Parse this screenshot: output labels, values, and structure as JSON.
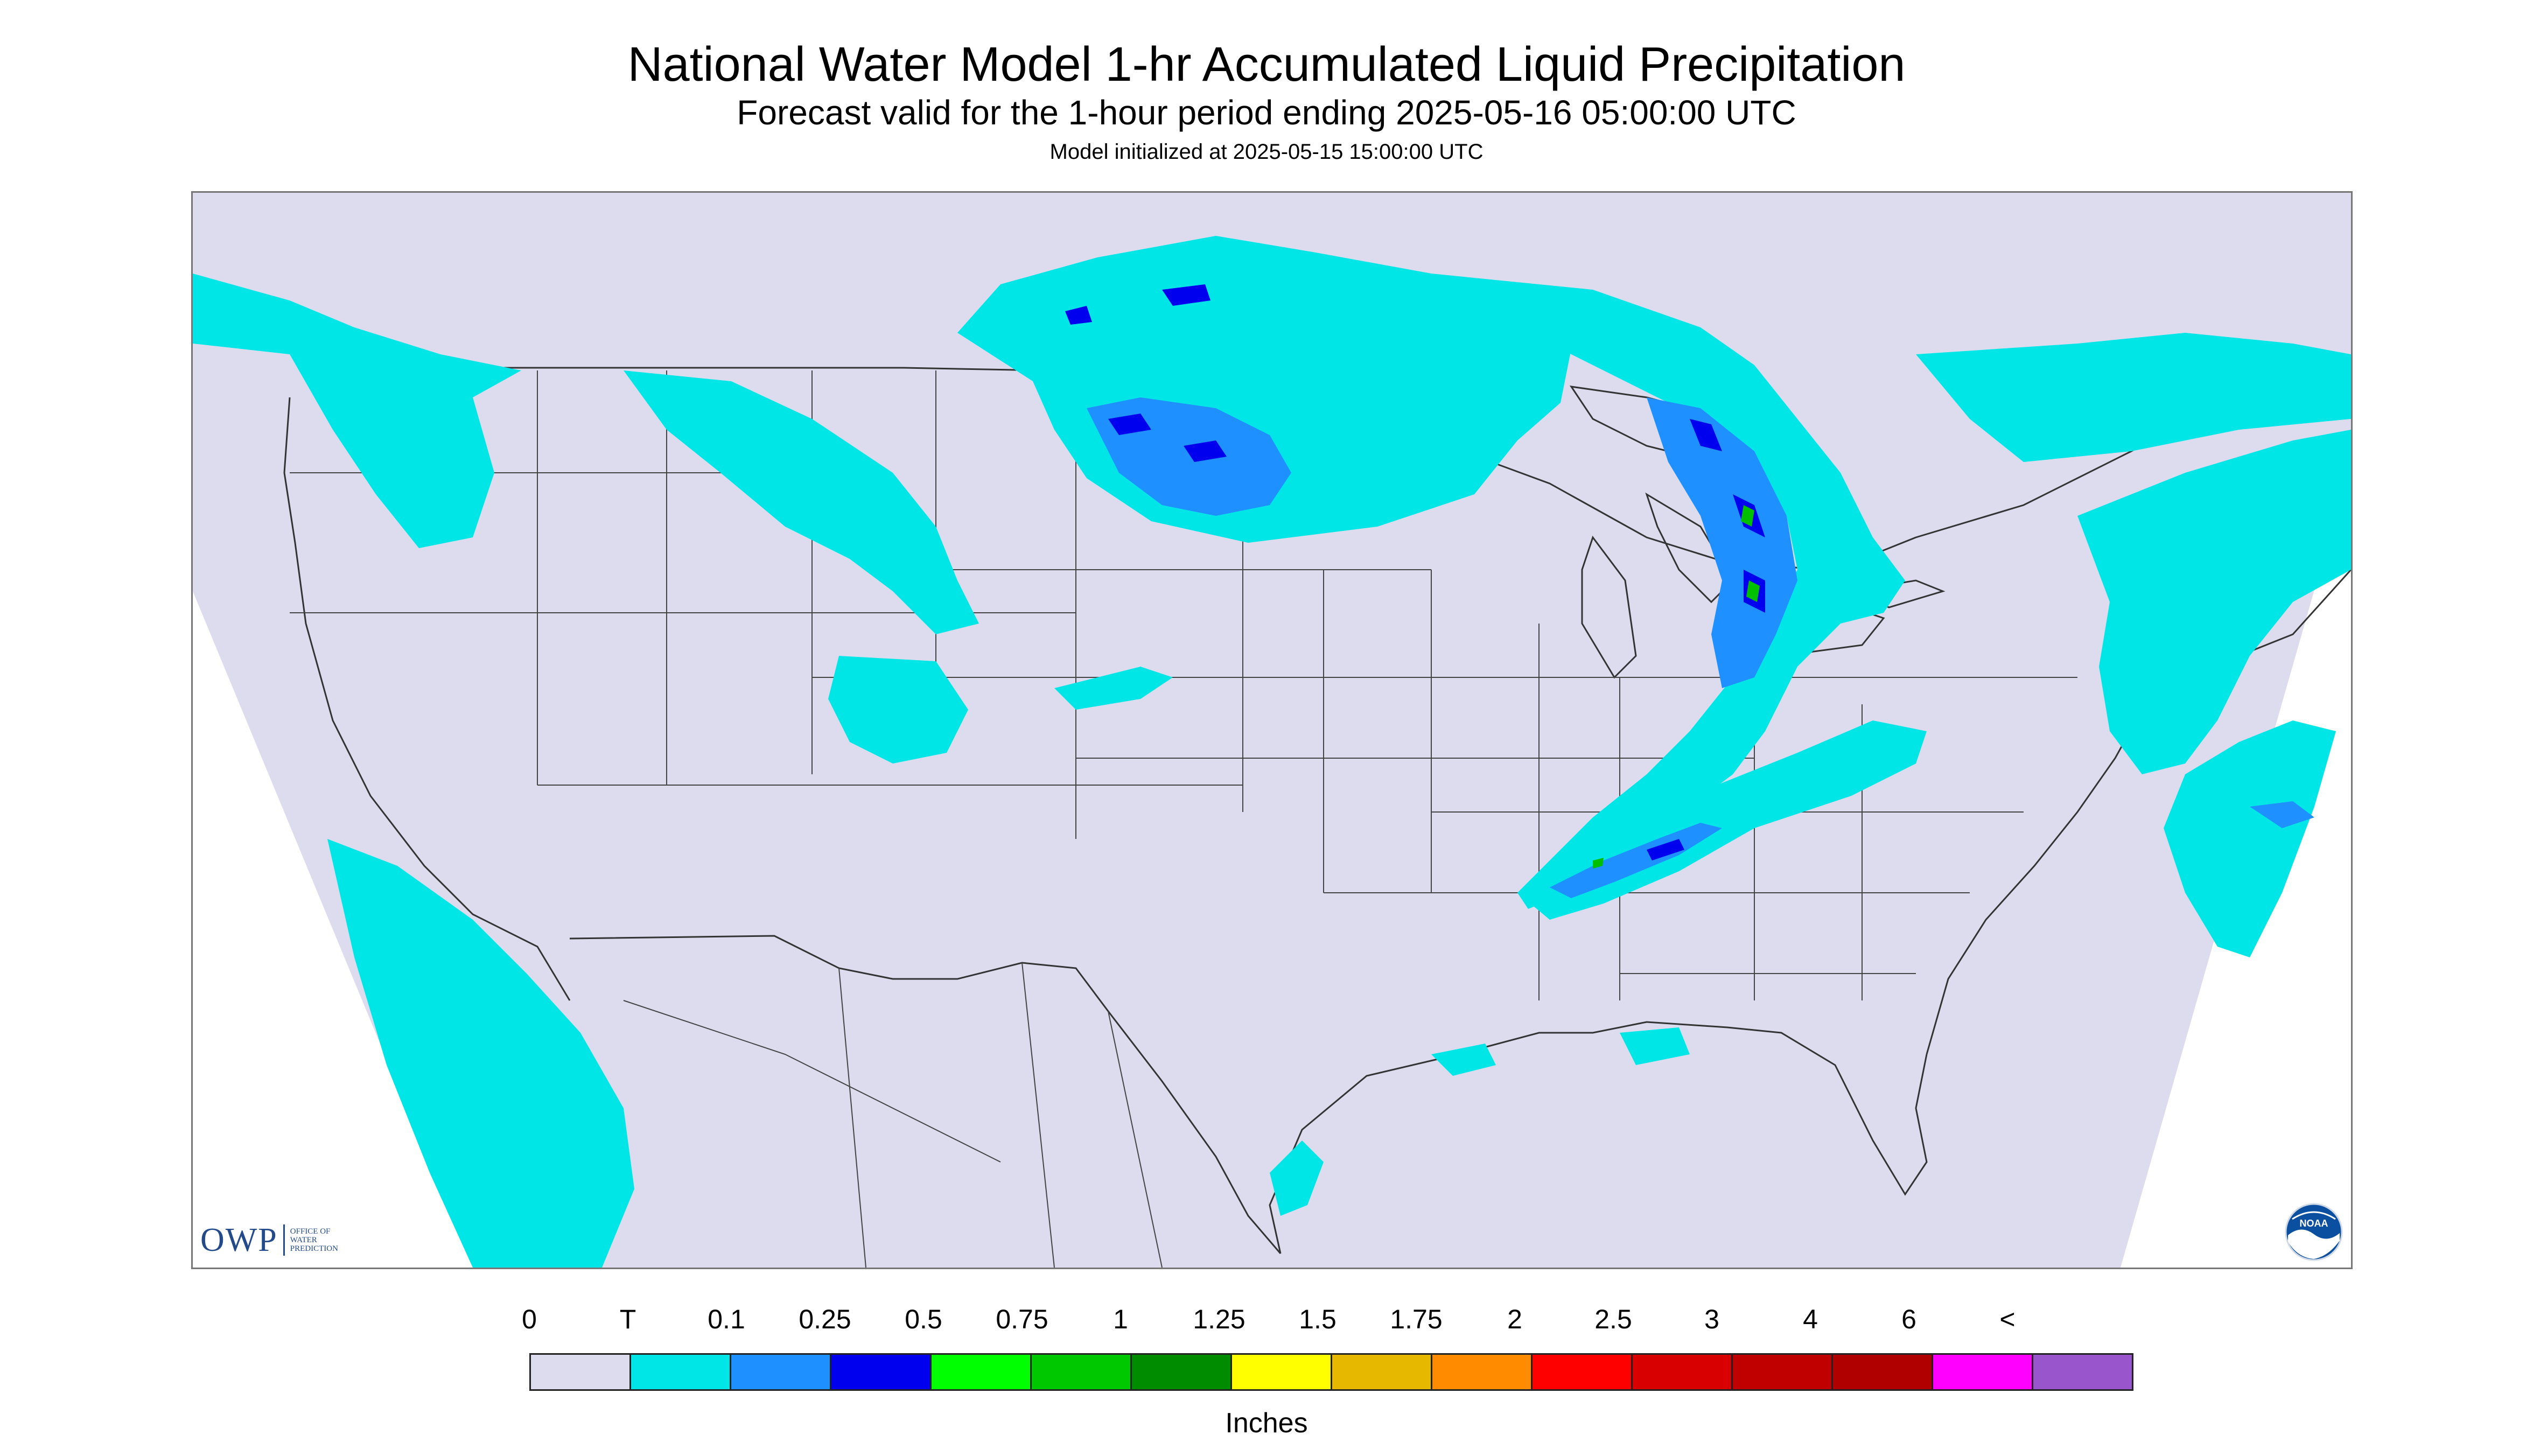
{
  "title": "National Water Model 1-hr Accumulated Liquid Precipitation",
  "subtitle": "Forecast valid for the 1-hour period ending 2025-05-16 05:00:00 UTC",
  "init_time": "Model initialized at 2025-05-15 15:00:00 UTC",
  "map": {
    "projection": "Lambert Conformal Conic",
    "background_outside": "#ffffff",
    "domain_fill": "#dcdcee",
    "outline_color": "#333333",
    "precip_colors": {
      "trace": "#00e6e6",
      "light": "#1e90ff",
      "moderate": "#0000ee",
      "heavy": "#00c000"
    }
  },
  "logos": {
    "owp_text": "OWP",
    "owp_sub_1": "OFFICE OF",
    "owp_sub_2": "WATER",
    "owp_sub_3": "PREDICTION",
    "noaa_text": "NOAA"
  },
  "legend": {
    "labels": [
      "0",
      "T",
      "0.1",
      "0.25",
      "0.5",
      "0.75",
      "1",
      "1.25",
      "1.5",
      "1.75",
      "2",
      "2.5",
      "3",
      "4",
      "6",
      "<"
    ],
    "colors": [
      "#dcdcee",
      "#00e6e6",
      "#1e90ff",
      "#0000ee",
      "#00ff00",
      "#00c800",
      "#008c00",
      "#ffff00",
      "#e6b800",
      "#ff8c00",
      "#ff0000",
      "#d80000",
      "#c00000",
      "#b00000",
      "#ff00ff",
      "#9955cc"
    ],
    "units": "Inches"
  }
}
